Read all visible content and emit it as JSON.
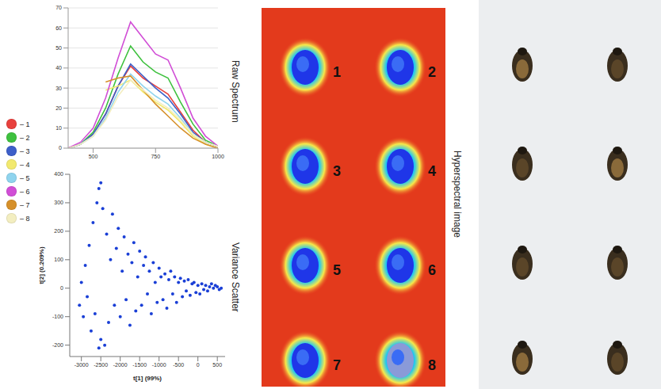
{
  "chart_data": [
    {
      "type": "line",
      "side_label": "Raw Spectrum",
      "x": [
        400,
        450,
        500,
        550,
        600,
        650,
        700,
        750,
        800,
        850,
        900,
        950,
        1000
      ],
      "xlim": [
        400,
        1000
      ],
      "xticks": [
        500,
        750,
        1000
      ],
      "ylim": [
        0,
        70
      ],
      "yticks": [
        0,
        10,
        20,
        30,
        40,
        50,
        60,
        70
      ],
      "grid": true,
      "legend": "left",
      "series": [
        {
          "name": "– 1",
          "color": "#e8413d",
          "values": [
            0,
            2,
            7,
            17,
            31,
            41,
            35,
            31,
            27,
            18,
            9,
            3,
            1
          ]
        },
        {
          "name": "– 2",
          "color": "#3ec13e",
          "values": [
            0,
            2,
            8,
            20,
            37,
            51,
            43,
            38,
            35,
            23,
            12,
            4,
            1
          ]
        },
        {
          "name": "– 3",
          "color": "#3d5fc9",
          "values": [
            0,
            2,
            7,
            17,
            31,
            42,
            36,
            30,
            25,
            17,
            8,
            3,
            1
          ]
        },
        {
          "name": "– 4",
          "color": "#f2e96e",
          "values": [
            null,
            null,
            null,
            29,
            31,
            34,
            28,
            23,
            19,
            13,
            6,
            2,
            0
          ]
        },
        {
          "name": "– 5",
          "color": "#8fd4ee",
          "values": [
            0,
            2,
            6,
            15,
            28,
            37,
            31,
            26,
            22,
            15,
            7,
            3,
            1
          ]
        },
        {
          "name": "– 6",
          "color": "#d14ed6",
          "values": [
            0,
            3,
            10,
            25,
            45,
            63,
            55,
            47,
            44,
            30,
            15,
            6,
            1
          ]
        },
        {
          "name": "– 7",
          "color": "#d6902a",
          "values": [
            null,
            null,
            null,
            33,
            35,
            36,
            29,
            22,
            16,
            10,
            5,
            2,
            0
          ]
        },
        {
          "name": "– 8",
          "color": "#f3eec0",
          "values": [
            0,
            2,
            6,
            14,
            26,
            34,
            29,
            24,
            20,
            14,
            7,
            3,
            1
          ]
        }
      ]
    },
    {
      "type": "scatter",
      "side_label": "Variance Scatter",
      "x_label": "t[1] (99%)",
      "y_label": "t[2] (0.209%)",
      "xlim": [
        -3300,
        700
      ],
      "xticks": [
        -3000,
        -2500,
        -2000,
        -1500,
        -1000,
        -500,
        0,
        500
      ],
      "ylim": [
        -240,
        400
      ],
      "yticks": [
        -200,
        -100,
        0,
        100,
        200,
        300,
        400
      ],
      "grid": false,
      "color": "#1a3fd6",
      "x": [
        -3050,
        -3000,
        -2950,
        -2900,
        -2850,
        -2800,
        -2750,
        -2700,
        -2650,
        -2600,
        -2550,
        -2500,
        -2450,
        -2400,
        -2350,
        -2300,
        -2250,
        -2200,
        -2150,
        -2100,
        -2050,
        -2000,
        -1950,
        -1900,
        -1850,
        -1800,
        -1750,
        -1700,
        -1650,
        -1600,
        -1550,
        -1500,
        -1450,
        -1400,
        -1350,
        -1300,
        -1250,
        -1200,
        -1150,
        -1100,
        -1050,
        -1000,
        -950,
        -900,
        -850,
        -800,
        -750,
        -700,
        -650,
        -600,
        -550,
        -500,
        -450,
        -400,
        -350,
        -300,
        -250,
        -200,
        -150,
        -100,
        -50,
        0,
        50,
        100,
        150,
        200,
        250,
        300,
        350,
        400,
        450,
        500,
        550,
        600,
        -2550,
        -2500
      ],
      "values": [
        -60,
        20,
        -100,
        80,
        -30,
        150,
        -150,
        230,
        -90,
        300,
        350,
        370,
        280,
        -200,
        190,
        -120,
        100,
        260,
        -60,
        140,
        210,
        -100,
        60,
        180,
        -40,
        120,
        -130,
        90,
        160,
        -80,
        40,
        130,
        -60,
        80,
        110,
        -20,
        60,
        -90,
        90,
        20,
        -50,
        70,
        40,
        -40,
        50,
        -70,
        30,
        60,
        -20,
        40,
        -50,
        20,
        35,
        -30,
        25,
        -10,
        30,
        -25,
        15,
        20,
        -15,
        10,
        -20,
        15,
        -5,
        10,
        -10,
        5,
        15,
        0,
        10,
        5,
        -5,
        0,
        -210,
        -180
      ]
    }
  ],
  "hyperspectral_image": {
    "label": "Hyperspectral image",
    "specimens": [
      "1",
      "2",
      "3",
      "4",
      "5",
      "6",
      "7",
      "8"
    ]
  }
}
